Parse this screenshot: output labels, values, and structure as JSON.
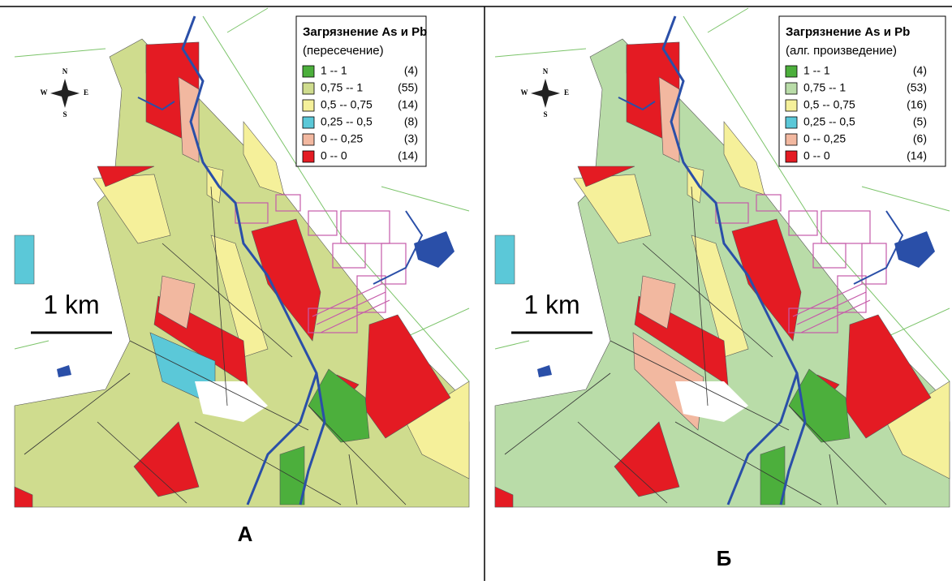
{
  "panels": [
    {
      "legend": {
        "title": "Загрязнение As и Pb",
        "subtitle": "(пересечение)",
        "items": [
          {
            "range": "1 -- 1",
            "count": "(4)"
          },
          {
            "range": "0,75 -- 1",
            "count": "(55)"
          },
          {
            "range": "0,5 -- 0,75",
            "count": "(14)"
          },
          {
            "range": "0,25 -- 0,5",
            "count": "(8)"
          },
          {
            "range": "0 -- 0,25",
            "count": "(3)"
          },
          {
            "range": "0 -- 0",
            "count": "(14)"
          }
        ]
      },
      "label": "А"
    },
    {
      "legend": {
        "title": "Загрязнение As и Pb",
        "subtitle": "(алг. произведение)",
        "items": [
          {
            "range": "1 -- 1",
            "count": "(4)"
          },
          {
            "range": "0,75 -- 1",
            "count": "(53)"
          },
          {
            "range": "0,5 -- 0,75",
            "count": "(16)"
          },
          {
            "range": "0,25 -- 0,5",
            "count": "(5)"
          },
          {
            "range": "0 -- 0,25",
            "count": "(6)"
          },
          {
            "range": "0 -- 0",
            "count": "(14)"
          }
        ]
      },
      "label": "Б"
    }
  ],
  "compass": {
    "n": "N",
    "s": "S",
    "w": "W",
    "e": "E"
  },
  "scale": "1 km"
}
